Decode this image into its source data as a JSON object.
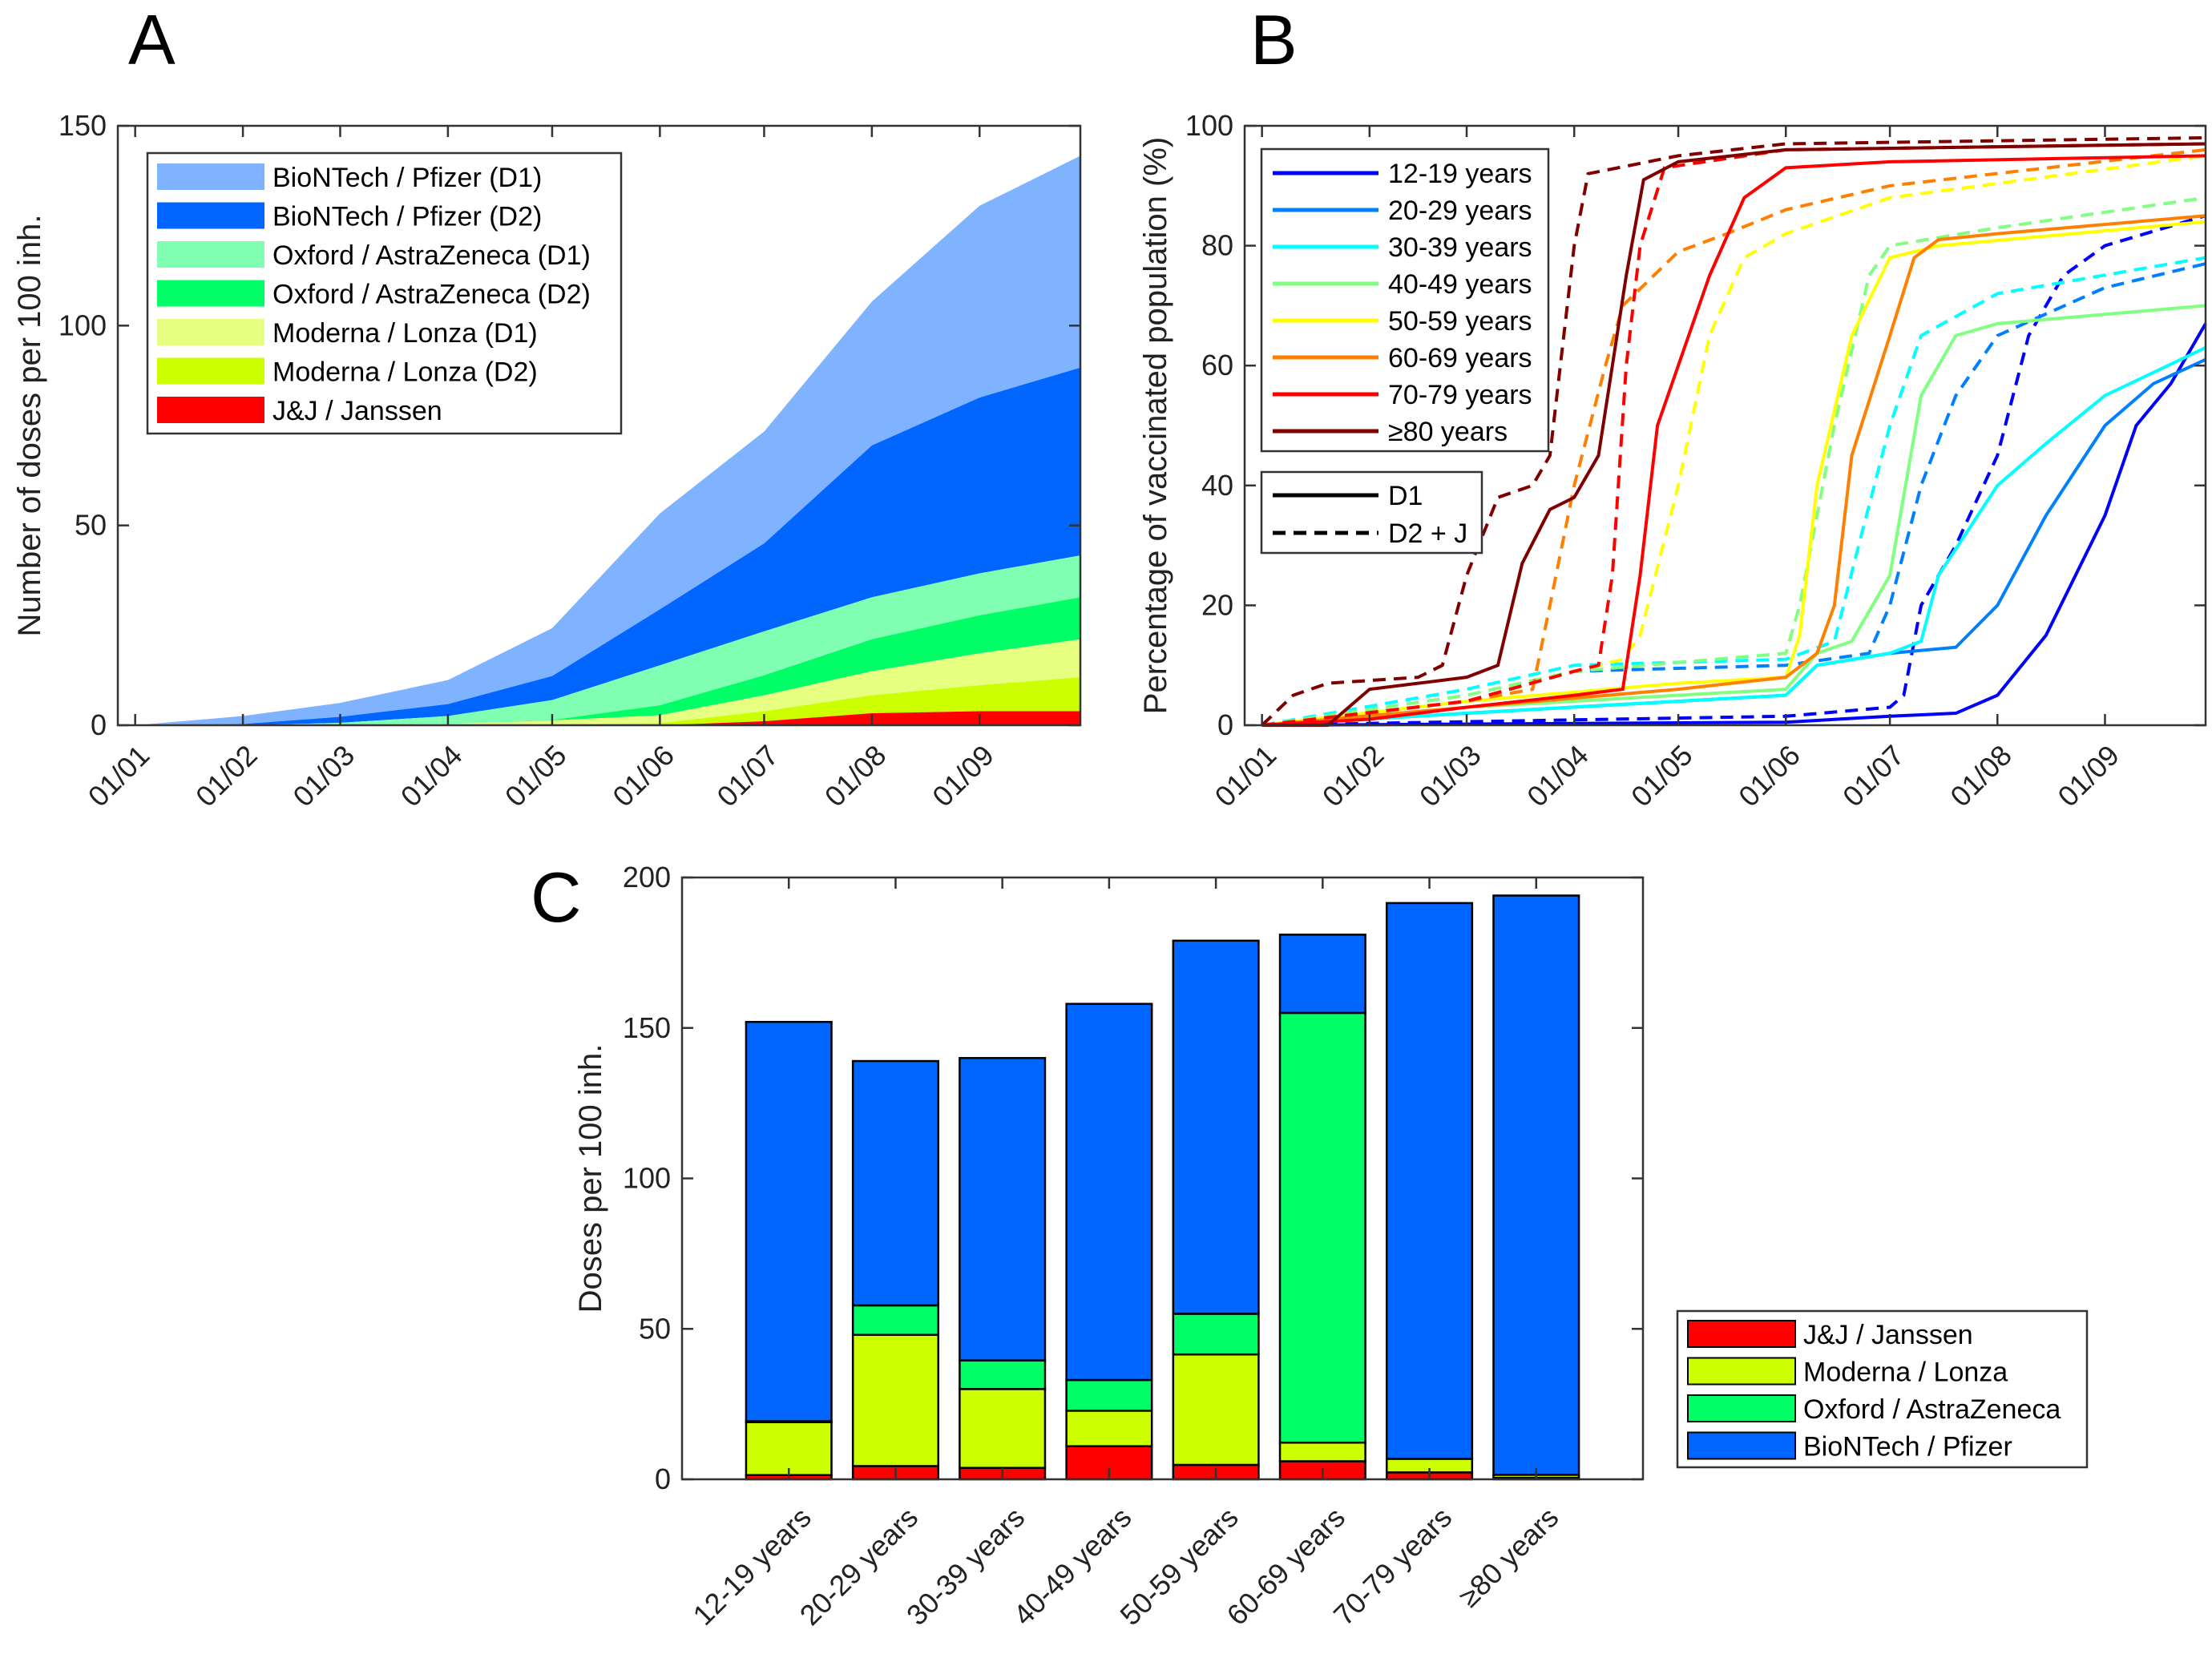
{
  "chart_data": [
    {
      "panel": "A",
      "type": "area",
      "stacked": true,
      "ylabel": "Number of doses per 100 inh.",
      "ylim": [
        0,
        150
      ],
      "yticks": [
        "0",
        "50",
        "100",
        "150"
      ],
      "xlim": [
        "01/01",
        "30/09"
      ],
      "xticks": [
        "01/01",
        "01/02",
        "01/03",
        "01/04",
        "01/05",
        "01/06",
        "01/07",
        "01/08",
        "01/09"
      ],
      "legend_position": "top-left",
      "x": [
        "01/01",
        "01/02",
        "01/03",
        "01/04",
        "01/05",
        "01/06",
        "01/07",
        "01/08",
        "01/09",
        "30/09"
      ],
      "series": [
        {
          "name": "J&J / Janssen",
          "color": "#ff0000",
          "values": [
            0,
            0,
            0,
            0,
            0,
            0,
            1,
            3,
            3.5,
            3.5
          ]
        },
        {
          "name": "Moderna / Lonza (D2)",
          "color": "#ccff00",
          "values": [
            0,
            0,
            0,
            0,
            0.2,
            0.5,
            2.5,
            4.5,
            6.5,
            8.5
          ]
        },
        {
          "name": "Moderna / Lonza (D1)",
          "color": "#e6ff80",
          "values": [
            0,
            0,
            0.1,
            0.3,
            1,
            2,
            4,
            6,
            8,
            9.5
          ]
        },
        {
          "name": "Oxford / AstraZeneca (D2)",
          "color": "#00ff66",
          "values": [
            0,
            0,
            0,
            0,
            0.1,
            2.5,
            5,
            8,
            9.5,
            10.5
          ]
        },
        {
          "name": "Oxford / AstraZeneca (D1)",
          "color": "#80ffb3",
          "values": [
            0,
            0,
            0.5,
            2,
            5,
            10,
            11,
            10.5,
            10.5,
            10.5
          ]
        },
        {
          "name": "BioNTech / Pfizer (D2)",
          "color": "#0066ff",
          "values": [
            0,
            0.3,
            1.5,
            3,
            6,
            14,
            22,
            38,
            44,
            47
          ]
        },
        {
          "name": "BioNTech / Pfizer (D1)",
          "color": "#80b3ff",
          "values": [
            0,
            2,
            3.5,
            6,
            12,
            24,
            28,
            36,
            48,
            53
          ]
        }
      ],
      "legend_order": [
        "BioNTech / Pfizer (D1)",
        "BioNTech / Pfizer (D2)",
        "Oxford / AstraZeneca (D1)",
        "Oxford / AstraZeneca (D2)",
        "Moderna / Lonza (D1)",
        "Moderna / Lonza (D2)",
        "J&J / Janssen"
      ]
    },
    {
      "panel": "B",
      "type": "line",
      "ylabel": "Percentage of vaccinated population (%)",
      "ylim": [
        0,
        100
      ],
      "yticks": [
        "0",
        "20",
        "40",
        "60",
        "80",
        "100"
      ],
      "xlim": [
        "01/01",
        "30/09"
      ],
      "xticks": [
        "01/01",
        "01/02",
        "01/03",
        "01/04",
        "01/05",
        "01/06",
        "01/07",
        "01/08",
        "01/09"
      ],
      "legend_position": "top-left",
      "style_legend": [
        {
          "label": "D1",
          "style": "solid"
        },
        {
          "label": "D2 + J",
          "style": "dashed"
        }
      ],
      "groups": [
        {
          "name": "12-19 years",
          "color": "#0000ff",
          "D1": [
            [
              "01/01",
              0
            ],
            [
              "01/06",
              0.5
            ],
            [
              "01/07",
              1.5
            ],
            [
              "20/07",
              2
            ],
            [
              "01/08",
              5
            ],
            [
              "15/08",
              15
            ],
            [
              "01/09",
              35
            ],
            [
              "10/09",
              50
            ],
            [
              "20/09",
              57
            ],
            [
              "30/09",
              67
            ]
          ],
          "D2": [
            [
              "01/01",
              0
            ],
            [
              "01/06",
              1.5
            ],
            [
              "01/07",
              3
            ],
            [
              "05/07",
              5
            ],
            [
              "10/07",
              20
            ],
            [
              "20/07",
              30
            ],
            [
              "01/08",
              45
            ],
            [
              "10/08",
              65
            ],
            [
              "20/08",
              75
            ],
            [
              "01/09",
              80
            ],
            [
              "30/09",
              85
            ]
          ]
        },
        {
          "name": "20-29 years",
          "color": "#0080ff",
          "D1": [
            [
              "01/01",
              0
            ],
            [
              "01/03",
              2
            ],
            [
              "01/05",
              4
            ],
            [
              "01/06",
              5
            ],
            [
              "10/06",
              10
            ],
            [
              "01/07",
              12
            ],
            [
              "20/07",
              13
            ],
            [
              "01/08",
              20
            ],
            [
              "15/08",
              35
            ],
            [
              "01/09",
              50
            ],
            [
              "15/09",
              57
            ],
            [
              "30/09",
              61
            ]
          ],
          "D2": [
            [
              "01/01",
              0
            ],
            [
              "01/03",
              4
            ],
            [
              "01/04",
              9
            ],
            [
              "01/06",
              10
            ],
            [
              "25/06",
              12
            ],
            [
              "01/07",
              20
            ],
            [
              "10/07",
              40
            ],
            [
              "20/07",
              55
            ],
            [
              "01/08",
              65
            ],
            [
              "01/09",
              73
            ],
            [
              "30/09",
              77
            ]
          ]
        },
        {
          "name": "30-39 years",
          "color": "#00ffff",
          "D1": [
            [
              "01/01",
              0
            ],
            [
              "01/03",
              2
            ],
            [
              "01/05",
              4
            ],
            [
              "01/06",
              5
            ],
            [
              "10/06",
              10
            ],
            [
              "01/07",
              12
            ],
            [
              "10/07",
              14
            ],
            [
              "15/07",
              25
            ],
            [
              "01/08",
              40
            ],
            [
              "15/08",
              47
            ],
            [
              "01/09",
              55
            ],
            [
              "30/09",
              63
            ]
          ],
          "D2": [
            [
              "01/01",
              0
            ],
            [
              "01/03",
              6
            ],
            [
              "01/04",
              10
            ],
            [
              "01/06",
              11
            ],
            [
              "15/06",
              14
            ],
            [
              "22/06",
              30
            ],
            [
              "01/07",
              50
            ],
            [
              "10/07",
              65
            ],
            [
              "01/08",
              72
            ],
            [
              "30/09",
              78
            ]
          ]
        },
        {
          "name": "40-49 years",
          "color": "#80ff80",
          "D1": [
            [
              "01/01",
              0
            ],
            [
              "01/03",
              3
            ],
            [
              "01/05",
              5
            ],
            [
              "01/06",
              6
            ],
            [
              "10/06",
              12
            ],
            [
              "20/06",
              14
            ],
            [
              "01/07",
              25
            ],
            [
              "10/07",
              55
            ],
            [
              "20/07",
              65
            ],
            [
              "01/08",
              67
            ],
            [
              "30/09",
              70
            ]
          ],
          "D2": [
            [
              "01/01",
              0
            ],
            [
              "01/03",
              5
            ],
            [
              "01/04",
              9
            ],
            [
              "01/06",
              12
            ],
            [
              "05/06",
              20
            ],
            [
              "15/06",
              50
            ],
            [
              "25/06",
              75
            ],
            [
              "01/07",
              80
            ],
            [
              "01/08",
              83
            ],
            [
              "30/09",
              88
            ]
          ]
        },
        {
          "name": "50-59 years",
          "color": "#ffff00",
          "D1": [
            [
              "01/01",
              0
            ],
            [
              "01/03",
              4
            ],
            [
              "01/05",
              7
            ],
            [
              "01/06",
              8
            ],
            [
              "05/06",
              15
            ],
            [
              "10/06",
              40
            ],
            [
              "20/06",
              65
            ],
            [
              "01/07",
              78
            ],
            [
              "15/07",
              80
            ],
            [
              "30/09",
              84
            ]
          ],
          "D2": [
            [
              "01/01",
              0
            ],
            [
              "01/03",
              4
            ],
            [
              "01/04",
              9
            ],
            [
              "15/04",
              11
            ],
            [
              "20/04",
              15
            ],
            [
              "01/05",
              40
            ],
            [
              "10/05",
              65
            ],
            [
              "20/05",
              78
            ],
            [
              "01/06",
              82
            ],
            [
              "01/07",
              88
            ],
            [
              "30/09",
              95
            ]
          ]
        },
        {
          "name": "60-69 years",
          "color": "#ff8000",
          "D1": [
            [
              "01/01",
              0
            ],
            [
              "01/03",
              3
            ],
            [
              "01/05",
              6
            ],
            [
              "01/06",
              8
            ],
            [
              "10/06",
              12
            ],
            [
              "15/06",
              20
            ],
            [
              "20/06",
              45
            ],
            [
              "01/07",
              65
            ],
            [
              "08/07",
              78
            ],
            [
              "15/07",
              81
            ],
            [
              "01/08",
              82
            ],
            [
              "30/09",
              85
            ]
          ],
          "D2": [
            [
              "01/01",
              0
            ],
            [
              "01/03",
              4
            ],
            [
              "20/03",
              6
            ],
            [
              "25/03",
              20
            ],
            [
              "01/04",
              40
            ],
            [
              "10/04",
              60
            ],
            [
              "15/04",
              70
            ],
            [
              "01/05",
              79
            ],
            [
              "15/05",
              82
            ],
            [
              "01/06",
              86
            ],
            [
              "01/07",
              90
            ],
            [
              "30/09",
              96
            ]
          ]
        },
        {
          "name": "70-79 years",
          "color": "#ff0000",
          "D1": [
            [
              "01/01",
              0
            ],
            [
              "01/02",
              1
            ],
            [
              "01/03",
              3
            ],
            [
              "01/04",
              5
            ],
            [
              "15/04",
              6
            ],
            [
              "20/04",
              25
            ],
            [
              "25/04",
              50
            ],
            [
              "01/05",
              60
            ],
            [
              "10/05",
              75
            ],
            [
              "20/05",
              88
            ],
            [
              "01/06",
              93
            ],
            [
              "01/07",
              94
            ],
            [
              "30/09",
              95
            ]
          ],
          "D2": [
            [
              "01/01",
              0
            ],
            [
              "01/03",
              4
            ],
            [
              "01/04",
              9
            ],
            [
              "08/04",
              10
            ],
            [
              "12/04",
              25
            ],
            [
              "16/04",
              60
            ],
            [
              "20/04",
              80
            ],
            [
              "27/04",
              93
            ],
            [
              "01/06",
              96
            ],
            [
              "30/09",
              97
            ]
          ]
        },
        {
          "name": "≥80 years",
          "color": "#800000",
          "D1": [
            [
              "01/01",
              0
            ],
            [
              "20/01",
              0
            ],
            [
              "01/02",
              6
            ],
            [
              "15/02",
              7
            ],
            [
              "01/03",
              8
            ],
            [
              "10/03",
              10
            ],
            [
              "17/03",
              27
            ],
            [
              "25/03",
              36
            ],
            [
              "01/04",
              38
            ],
            [
              "08/04",
              45
            ],
            [
              "12/04",
              60
            ],
            [
              "16/04",
              75
            ],
            [
              "21/04",
              91
            ],
            [
              "01/05",
              94
            ],
            [
              "01/06",
              96
            ],
            [
              "30/09",
              97
            ]
          ],
          "D2": [
            [
              "01/01",
              0
            ],
            [
              "10/01",
              5
            ],
            [
              "20/01",
              7
            ],
            [
              "15/02",
              8
            ],
            [
              "22/02",
              10
            ],
            [
              "01/03",
              25
            ],
            [
              "10/03",
              38
            ],
            [
              "20/03",
              40
            ],
            [
              "25/03",
              45
            ],
            [
              "01/04",
              80
            ],
            [
              "05/04",
              92
            ],
            [
              "01/05",
              95
            ],
            [
              "01/06",
              97
            ],
            [
              "30/09",
              98
            ]
          ]
        }
      ]
    },
    {
      "panel": "C",
      "type": "bar",
      "stacked": true,
      "ylabel": "Doses per 100 inh.",
      "ylim": [
        0,
        200
      ],
      "yticks": [
        "0",
        "50",
        "100",
        "150",
        "200"
      ],
      "categories": [
        "12-19 years",
        "20-29 years",
        "30-39 years",
        "40-49 years",
        "50-59 years",
        "60-69 years",
        "70-79 years",
        "≥80 years"
      ],
      "legend_position": "right",
      "series": [
        {
          "name": "J&J / Janssen",
          "color": "#ff0000",
          "values": [
            1.4,
            4.4,
            3.8,
            11,
            4.8,
            6,
            2.3,
            0.5
          ]
        },
        {
          "name": "Moderna / Lonza",
          "color": "#ccff00",
          "values": [
            17.6,
            43.6,
            26.2,
            11.8,
            36.7,
            6.2,
            4.5,
            1
          ]
        },
        {
          "name": "Oxford / AstraZeneca",
          "color": "#00ff66",
          "values": [
            0.3,
            9.8,
            9.5,
            10.2,
            13.5,
            142.8,
            0,
            0
          ]
        },
        {
          "name": "BioNTech / Pfizer",
          "color": "#0066ff",
          "values": [
            132.7,
            81.2,
            100.5,
            125,
            124,
            26,
            184.7,
            192.5
          ]
        }
      ]
    }
  ],
  "panel_labels": [
    "A",
    "B",
    "C"
  ]
}
